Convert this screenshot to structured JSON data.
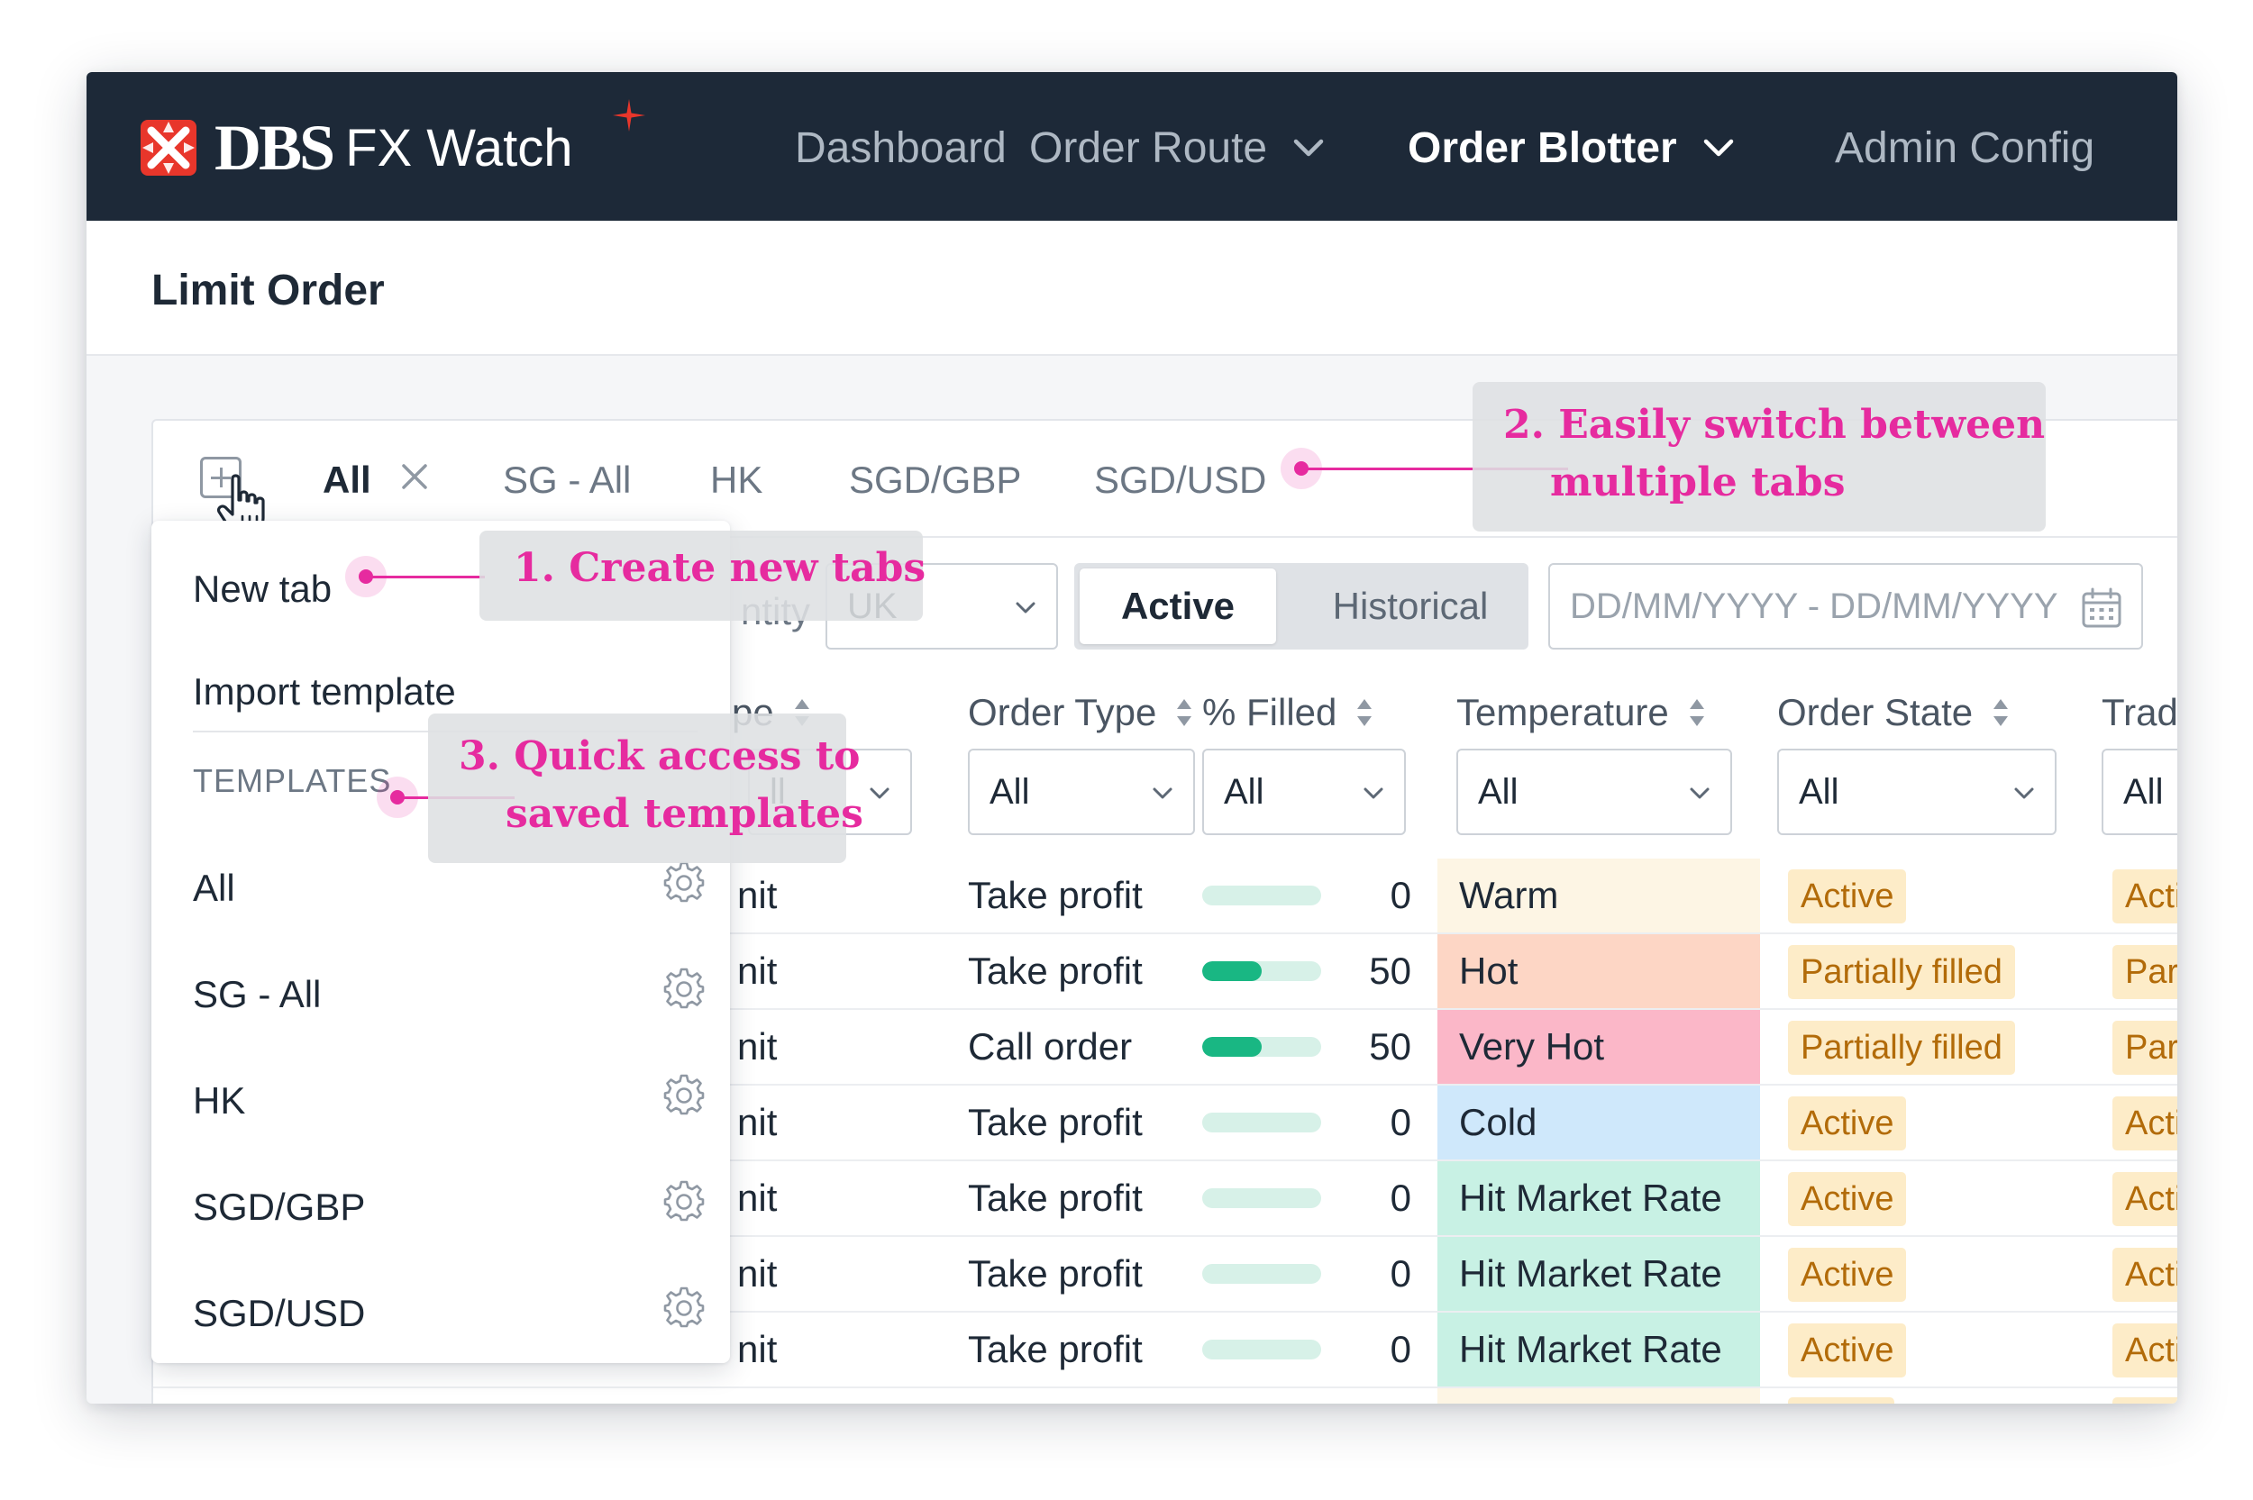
{
  "app": {
    "brand": "DBS",
    "product": "FX Watch"
  },
  "nav": {
    "items": [
      {
        "label": "Dashboard",
        "has_dropdown": false,
        "active": false
      },
      {
        "label": "Order Route",
        "has_dropdown": true,
        "active": false
      },
      {
        "label": "Order Blotter",
        "has_dropdown": true,
        "active": true
      },
      {
        "label": "Admin Config",
        "has_dropdown": false,
        "active": false
      }
    ]
  },
  "page": {
    "title": "Limit Order"
  },
  "tabs": {
    "items": [
      {
        "label": "All",
        "active": true,
        "closable": true
      },
      {
        "label": "SG - All",
        "active": false
      },
      {
        "label": "HK",
        "active": false
      },
      {
        "label": "SGD/GBP",
        "active": false
      },
      {
        "label": "SGD/USD",
        "active": false
      }
    ]
  },
  "filters": {
    "quantity_label": "ntity",
    "quantity_value": "UK",
    "segment": {
      "active": "Active",
      "inactive": "Historical"
    },
    "date_placeholder": "DD/MM/YYYY - DD/MM/YYYY"
  },
  "table": {
    "columns": [
      {
        "label": "pe",
        "filter": "ll"
      },
      {
        "label": "Order Type",
        "filter": "All"
      },
      {
        "label": "% Filled",
        "filter": "All"
      },
      {
        "label": "Temperature",
        "filter": "All"
      },
      {
        "label": "Order State",
        "filter": "All"
      },
      {
        "label": "Trader",
        "filter": "All"
      }
    ],
    "rows": [
      {
        "type": "nit",
        "order_type": "Take profit",
        "filled": "0",
        "fill_fraction": 0,
        "temperature": "Warm",
        "order_state": "Active",
        "trader_state": "Active"
      },
      {
        "type": "nit",
        "order_type": "Take profit",
        "filled": "50",
        "fill_fraction": 0.5,
        "temperature": "Hot",
        "order_state": "Partially filled",
        "trader_state": "Partiall"
      },
      {
        "type": "nit",
        "order_type": "Call order",
        "filled": "50",
        "fill_fraction": 0.5,
        "temperature": "Very Hot",
        "order_state": "Partially filled",
        "trader_state": "Partiall"
      },
      {
        "type": "nit",
        "order_type": "Take profit",
        "filled": "0",
        "fill_fraction": 0,
        "temperature": "Cold",
        "order_state": "Active",
        "trader_state": "Active"
      },
      {
        "type": "nit",
        "order_type": "Take profit",
        "filled": "0",
        "fill_fraction": 0,
        "temperature": "Hit Market Rate",
        "order_state": "Active",
        "trader_state": "Active"
      },
      {
        "type": "nit",
        "order_type": "Take profit",
        "filled": "0",
        "fill_fraction": 0,
        "temperature": "Hit Market Rate",
        "order_state": "Active",
        "trader_state": "Active"
      },
      {
        "type": "nit",
        "order_type": "Take profit",
        "filled": "0",
        "fill_fraction": 0,
        "temperature": "Hit Market Rate",
        "order_state": "Active",
        "trader_state": "Active"
      }
    ]
  },
  "menu": {
    "new_tab": "New tab",
    "import_template": "Import template",
    "section_label": "TEMPLATES",
    "templates": [
      "All",
      "SG - All",
      "HK",
      "SGD/GBP",
      "SGD/USD"
    ]
  },
  "annotations": {
    "a1": "1. Create new tabs",
    "a2_line1": "2. Easily switch between",
    "a2_line2": "multiple tabs",
    "a3_line1": "3. Quick access to",
    "a3_line2": "saved templates"
  },
  "colors": {
    "nav_bg": "#1d2938",
    "brand_red": "#e8362b",
    "accent_green": "#19b783",
    "annotation_pink": "#e62b9f",
    "badge_bg": "#fdecc8",
    "badge_text": "#b26b09",
    "temp_warm": "#fdf5e4",
    "temp_hot": "#fdd6c5",
    "temp_very_hot": "#fbb7c8",
    "temp_cold": "#cfe8fb",
    "temp_hit_market_rate": "#c8f1e4"
  },
  "icons": {
    "logo": "dbs-logo-icon",
    "spark": "sparkle-icon",
    "add_tab": "add-tab-icon",
    "cursor": "hand-cursor-icon",
    "close": "close-icon",
    "dropdown": "chevron-down-icon",
    "sort": "sort-icon",
    "calendar": "calendar-icon",
    "settings": "gear-icon"
  }
}
